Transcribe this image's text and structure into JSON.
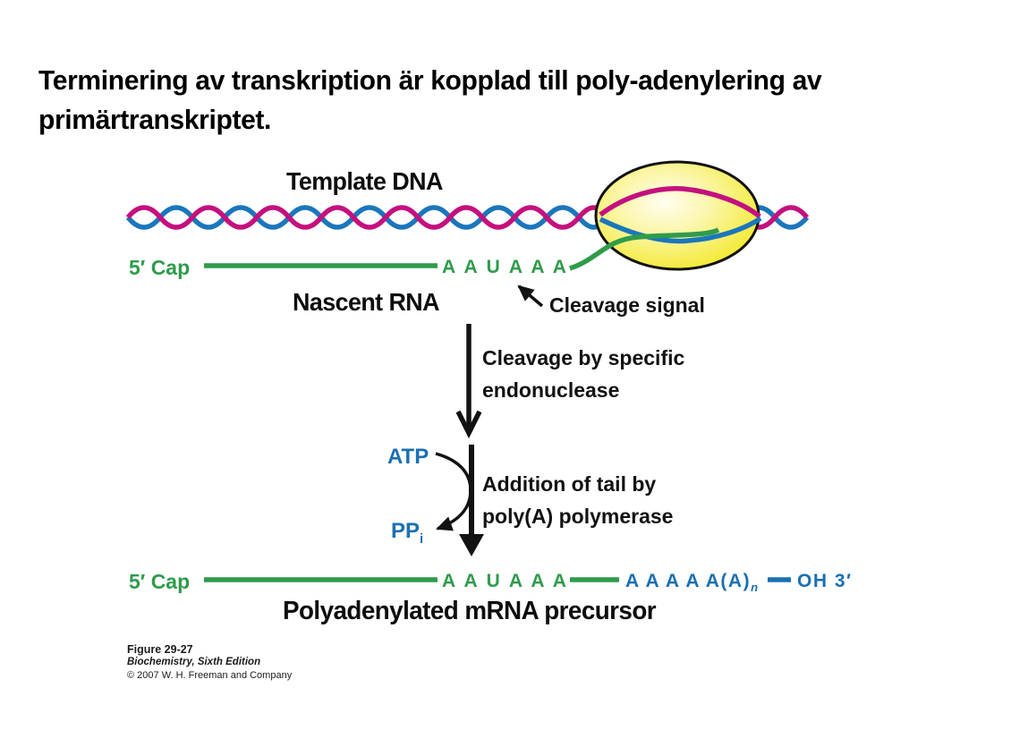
{
  "colors": {
    "green": "#2F9B4B",
    "blue": "#1B70B1",
    "magenta": "#C4107E",
    "helix_blue": "#1B76BB",
    "polymerase_yellow": "#F4EB3F",
    "text_black": "#121212"
  },
  "title": {
    "line1": "Terminering av transkription är kopplad till poly-adenylering av",
    "line2": "primärtranskriptet."
  },
  "diagram": {
    "template_dna_label": "Template DNA",
    "nascent_rna_label": "Nascent RNA",
    "cleavage_signal_label": "Cleavage signal",
    "top_strand": {
      "cap_label": "5′ Cap",
      "signal_sequence": "A A U A A A"
    },
    "step1": {
      "line1": "Cleavage by specific",
      "line2": "endonuclease"
    },
    "step2": {
      "substrate": "ATP",
      "byproduct_main": "PP",
      "byproduct_sub": "i",
      "line1": "Addition of tail by",
      "line2": "poly(A) polymerase"
    },
    "product_strand": {
      "cap_label": "5′ Cap",
      "signal_sequence": "A A U A A A",
      "polya_tail": "A A A A A(A)",
      "polya_sub": "n",
      "end_label": "OH 3′"
    },
    "product_label": "Polyadenylated mRNA precursor"
  },
  "credit": {
    "figure": "Figure 29-27",
    "book": "Biochemistry, Sixth Edition",
    "copyright": "© 2007 W. H. Freeman and Company"
  }
}
